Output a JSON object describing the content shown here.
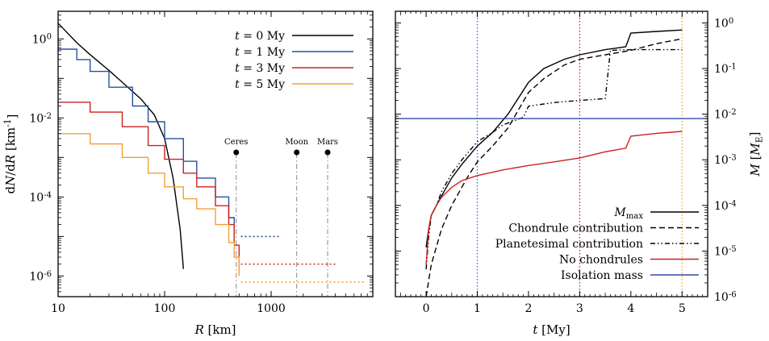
{
  "chart_data": [
    {
      "type": "line",
      "xscale": "log",
      "yscale": "log",
      "xlim": [
        10,
        9000
      ],
      "ylim": [
        3e-07,
        5
      ],
      "xlabel": "R [km]",
      "ylabel": "dN/dR [km^-1]",
      "xticks": [
        {
          "value": 10,
          "label": "10"
        },
        {
          "value": 100,
          "label": "100"
        },
        {
          "value": 1000,
          "label": "1000"
        }
      ],
      "yticks": [
        {
          "value": 1e-06,
          "label": "10^-6"
        },
        {
          "value": 0.0001,
          "label": "10^-4"
        },
        {
          "value": 0.01,
          "label": "10^-2"
        },
        {
          "value": 1,
          "label": "10^0"
        }
      ],
      "legend_position": "top-right",
      "series": [
        {
          "name": "t = 0 My",
          "color": "#000000",
          "style": "solid",
          "x": [
            10,
            15,
            20,
            30,
            40,
            60,
            80,
            100,
            120,
            140,
            150
          ],
          "y": [
            2.5,
            0.8,
            0.4,
            0.16,
            0.08,
            0.03,
            0.012,
            0.003,
            0.0003,
            1.5e-05,
            1.5e-06
          ]
        },
        {
          "name": "t = 1 My",
          "color": "#2a4fa6",
          "style": "steps",
          "x": [
            10,
            15,
            20,
            30,
            50,
            70,
            100,
            150,
            200,
            300,
            400,
            450
          ],
          "y": [
            0.55,
            0.3,
            0.15,
            0.06,
            0.02,
            0.008,
            0.003,
            0.0008,
            0.0003,
            0.0001,
            3e-05,
            1.1e-05
          ]
        },
        {
          "name": "t = 3 My",
          "color": "#cc2222",
          "style": "steps",
          "x": [
            10,
            20,
            40,
            70,
            100,
            150,
            200,
            300,
            400,
            450,
            500
          ],
          "y": [
            0.025,
            0.014,
            0.006,
            0.002,
            0.0009,
            0.0004,
            0.00018,
            6e-05,
            2e-05,
            6e-06,
            1.5e-06
          ]
        },
        {
          "name": "t = 5 My",
          "color": "#f5a030",
          "style": "steps",
          "x": [
            10,
            20,
            40,
            70,
            100,
            150,
            200,
            300,
            400,
            450,
            500
          ],
          "y": [
            0.004,
            0.0022,
            0.001,
            0.0004,
            0.00018,
            9e-05,
            5e-05,
            2e-05,
            7e-06,
            3e-06,
            1e-06
          ]
        }
      ],
      "dotted_tails": [
        {
          "color": "#2a4fa6",
          "x": [
            520,
            1200
          ],
          "y": 1e-05
        },
        {
          "color": "#cc2222",
          "x": [
            520,
            4200
          ],
          "y": 2e-06
        },
        {
          "color": "#f5a030",
          "x": [
            520,
            7500
          ],
          "y": 7e-07
        }
      ],
      "reference_bodies": [
        {
          "name": "Ceres",
          "radius": 470
        },
        {
          "name": "Moon",
          "radius": 1737
        },
        {
          "name": "Mars",
          "radius": 3390
        }
      ]
    },
    {
      "type": "line",
      "xscale": "linear",
      "yscale": "log",
      "xlim": [
        -0.6,
        5.5
      ],
      "ylim": [
        1e-06,
        1.8
      ],
      "xlabel": "t [My]",
      "ylabel": "M [M_E]",
      "xticks": [
        {
          "value": 0,
          "label": "0"
        },
        {
          "value": 1,
          "label": "1"
        },
        {
          "value": 2,
          "label": "2"
        },
        {
          "value": 3,
          "label": "3"
        },
        {
          "value": 4,
          "label": "4"
        },
        {
          "value": 5,
          "label": "5"
        }
      ],
      "yticks": [
        {
          "value": 1e-06,
          "label": "10^-6"
        },
        {
          "value": 1e-05,
          "label": "10^-5"
        },
        {
          "value": 0.0001,
          "label": "10^-4"
        },
        {
          "value": 0.001,
          "label": "10^-3"
        },
        {
          "value": 0.01,
          "label": "10^-2"
        },
        {
          "value": 0.1,
          "label": "10^-1"
        },
        {
          "value": 1,
          "label": "10^0"
        }
      ],
      "legend_position": "bottom-right",
      "series": [
        {
          "name": "M_max",
          "color": "#000000",
          "style": "solid",
          "x": [
            0,
            0.05,
            0.1,
            0.2,
            0.3,
            0.5,
            0.7,
            1.0,
            1.3,
            1.6,
            2.0,
            2.3,
            2.7,
            3.0,
            3.5,
            3.9,
            4.0,
            4.5,
            5.0
          ],
          "y": [
            1.2e-05,
            3e-05,
            6e-05,
            0.0001,
            0.00016,
            0.0004,
            0.0008,
            0.002,
            0.004,
            0.01,
            0.05,
            0.1,
            0.16,
            0.2,
            0.26,
            0.3,
            0.6,
            0.65,
            0.7
          ]
        },
        {
          "name": "Chondrule contribution",
          "color": "#000000",
          "style": "dashed",
          "x": [
            0,
            0.1,
            0.3,
            0.5,
            0.8,
            1.0,
            1.3,
            1.6,
            2.0,
            2.3,
            2.7,
            3.0,
            3.5,
            4.0,
            4.5,
            5.0
          ],
          "y": [
            1e-06,
            5e-06,
            3e-05,
            0.0001,
            0.0004,
            0.0009,
            0.002,
            0.005,
            0.03,
            0.06,
            0.12,
            0.16,
            0.2,
            0.25,
            0.35,
            0.45
          ]
        },
        {
          "name": "Planetesimal contribution",
          "color": "#000000",
          "style": "dashdot",
          "x": [
            0,
            0.05,
            0.1,
            0.2,
            0.3,
            0.5,
            0.7,
            1.0,
            1.3,
            1.5,
            1.9,
            2.0,
            2.5,
            3.0,
            3.5,
            3.6,
            4.0,
            5.0
          ],
          "y": [
            4e-06,
            2e-05,
            6e-05,
            0.0001,
            0.0002,
            0.0005,
            0.001,
            0.0025,
            0.004,
            0.0058,
            0.0085,
            0.015,
            0.018,
            0.02,
            0.022,
            0.25,
            0.26,
            0.26
          ]
        },
        {
          "name": "No chondrules",
          "color": "#cc2222",
          "style": "solid",
          "x": [
            0,
            0.05,
            0.1,
            0.2,
            0.3,
            0.5,
            0.7,
            1.0,
            1.5,
            2.0,
            2.5,
            3.0,
            3.5,
            3.9,
            4.0,
            4.5,
            5.0
          ],
          "y": [
            5e-06,
            3e-05,
            6e-05,
            0.0001,
            0.00015,
            0.00025,
            0.00035,
            0.00045,
            0.0006,
            0.00075,
            0.0009,
            0.0011,
            0.0015,
            0.0018,
            0.0033,
            0.0038,
            0.0042
          ]
        },
        {
          "name": "Isolation mass",
          "color": "#2a4fa6",
          "style": "solid",
          "x": [
            -0.6,
            5.5
          ],
          "y": [
            0.008,
            0.008
          ]
        }
      ],
      "vertical_markers": [
        {
          "x": 1,
          "color": "#4a5fe0"
        },
        {
          "x": 3,
          "color": "#cc2222"
        },
        {
          "x": 5,
          "color": "#f5a030"
        }
      ]
    }
  ]
}
